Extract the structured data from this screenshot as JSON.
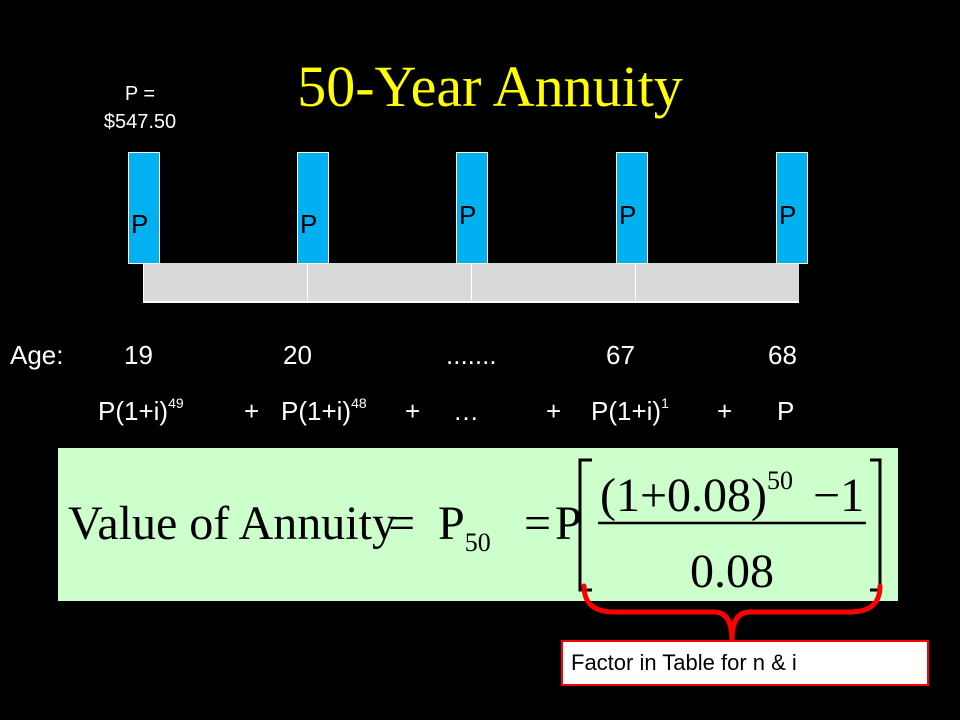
{
  "title": "50-Year Annuity",
  "payment_note": {
    "line1": "P =",
    "line2": "$547.50"
  },
  "payment_label": "P",
  "payments": [
    "P",
    "P",
    "P",
    "P",
    "P"
  ],
  "ages": {
    "label": "Age:",
    "a1": "19",
    "a2": "20",
    "ellipsis": ".......",
    "a3": "67",
    "a4": "68"
  },
  "sum_terms": {
    "t1_base": "P(1+i)",
    "t1_exp": "49",
    "plus1": "+",
    "t2_base": "P(1+i)",
    "t2_exp": "48",
    "plus2": "+",
    "ellipsis": "…",
    "plus3": "+",
    "t3_base": "P(1+i)",
    "t3_exp": "1",
    "plus4": "+",
    "t4": "P"
  },
  "formula": {
    "lhs": "Value of  Annuity",
    "eq1": "=",
    "p50_base": "P",
    "p50_sub": "50",
    "eq2": "=",
    "p": "P",
    "numerator_base": "(1+0.08)",
    "numerator_exp": "50",
    "numerator_minus": "−1",
    "denominator": "0.08"
  },
  "callout": "Factor in Table for n & i",
  "colors": {
    "title": "#ffff00",
    "payment_box": "#00b0f0",
    "timeline": "#d9d9d9",
    "formula_bg": "#ccffcc",
    "brace": "#ff0000"
  }
}
